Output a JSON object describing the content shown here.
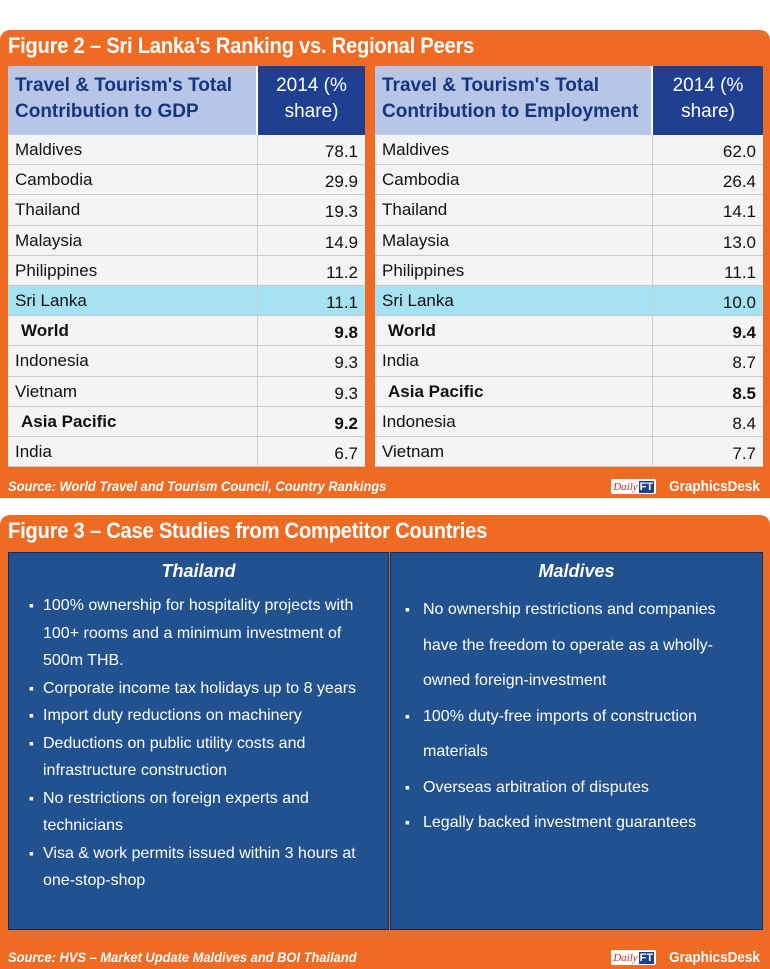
{
  "figure2": {
    "title": "Figure 2 – Sri Lanka’s Ranking vs. Regional Peers",
    "gdp_table": {
      "header": "Travel & Tourism's Total Contribution to GDP",
      "value_header": "2014 (% share)",
      "rows": [
        {
          "name": "Maldives",
          "value": "78.1"
        },
        {
          "name": "Cambodia",
          "value": "29.9"
        },
        {
          "name": "Thailand",
          "value": "19.3"
        },
        {
          "name": "Malaysia",
          "value": "14.9"
        },
        {
          "name": "Philippines",
          "value": "11.2"
        },
        {
          "name": "Sri Lanka",
          "value": "11.1"
        },
        {
          "name": "World",
          "value": "9.8"
        },
        {
          "name": "Indonesia",
          "value": "9.3"
        },
        {
          "name": "Vietnam",
          "value": "9.3"
        },
        {
          "name": "Asia Pacific",
          "value": "9.2"
        },
        {
          "name": "India",
          "value": "6.7"
        }
      ]
    },
    "employment_table": {
      "header": "Travel & Tourism's Total Contribution to Employment",
      "value_header": "2014 (% share)",
      "rows": [
        {
          "name": "Maldives",
          "value": "62.0"
        },
        {
          "name": "Cambodia",
          "value": "26.4"
        },
        {
          "name": "Thailand",
          "value": "14.1"
        },
        {
          "name": "Malaysia",
          "value": "13.0"
        },
        {
          "name": "Philippines",
          "value": "11.1"
        },
        {
          "name": "Sri Lanka",
          "value": "10.0"
        },
        {
          "name": "World",
          "value": "9.4"
        },
        {
          "name": "India",
          "value": "8.7"
        },
        {
          "name": "Asia Pacific",
          "value": "8.5"
        },
        {
          "name": "Indonesia",
          "value": "8.4"
        },
        {
          "name": "Vietnam",
          "value": "7.7"
        }
      ]
    },
    "source": "Source: World Travel and Tourism Council, Country Rankings"
  },
  "figure3": {
    "title": "Figure 3 – Case Studies from Competitor Countries",
    "thailand": {
      "title": "Thailand",
      "items": [
        "100% ownership for hospitality projects with 100+ rooms and a minimum investment of 500m THB.",
        "Corporate income tax holidays up to 8 years",
        "Import duty reductions on machinery",
        "Deductions on public utility costs and infrastructure construction",
        "No restrictions on foreign experts and technicians",
        "Visa & work permits issued within 3 hours at one-stop-shop"
      ]
    },
    "maldives": {
      "title": "Maldives",
      "items": [
        "No ownership restrictions and companies have the freedom to operate as a wholly-owned foreign-investment",
        "100% duty-free imports of construction materials",
        "Overseas arbitration of disputes",
        "Legally backed investment guarantees"
      ]
    },
    "source": "Source: HVS – Market Update Maldives and BOI Thailand"
  },
  "brand": {
    "logo_daily": "Daily",
    "logo_ft": "FT",
    "desk": "GraphicsDesk"
  },
  "colors": {
    "panel": "#ef6a22",
    "header_label_bg": "#b7c6e7",
    "header_value_bg": "#1f3f90",
    "highlight_row": "#a7e2f3",
    "case_box": "#21518f"
  },
  "highlight": {
    "row": "Sri Lanka",
    "bold_rows": [
      "World",
      "Asia Pacific"
    ]
  },
  "bullet_glyph": "▪"
}
